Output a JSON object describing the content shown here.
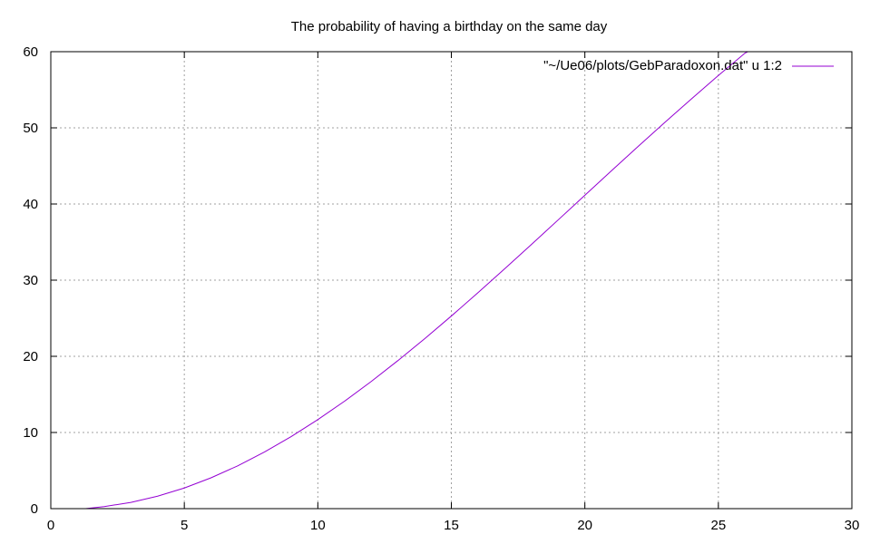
{
  "chart_data": {
    "type": "line",
    "title": "The probability of having a birthday on the same day",
    "xlabel": "",
    "ylabel": "",
    "xlim": [
      0,
      30
    ],
    "ylim": [
      0,
      60
    ],
    "x_ticks": [
      0,
      5,
      10,
      15,
      20,
      25,
      30
    ],
    "y_ticks": [
      0,
      10,
      20,
      30,
      40,
      50,
      60
    ],
    "x_tick_labels": [
      "0",
      "5",
      "10",
      "15",
      "20",
      "25",
      "30"
    ],
    "y_tick_labels": [
      "0",
      "10",
      "20",
      "30",
      "40",
      "50",
      "60"
    ],
    "grid": true,
    "legend_position": "top-right",
    "series": [
      {
        "name": "\"~/Ue06/plots/GebParadoxon.dat\" u 1:2",
        "color": "#9400d3",
        "x": [
          1.3,
          2,
          3,
          4,
          5,
          6,
          7,
          8,
          9,
          10,
          11,
          12,
          13,
          14,
          15,
          16,
          17,
          18,
          19,
          20,
          21,
          22,
          23,
          24,
          25,
          26,
          26.1
        ],
        "y": [
          0,
          0.27,
          0.82,
          1.64,
          2.71,
          4.05,
          5.62,
          7.43,
          9.46,
          11.69,
          14.11,
          16.7,
          19.44,
          22.31,
          25.29,
          28.36,
          31.5,
          34.69,
          37.91,
          41.14,
          44.37,
          47.57,
          50.73,
          53.83,
          56.87,
          59.82,
          60
        ]
      }
    ]
  }
}
